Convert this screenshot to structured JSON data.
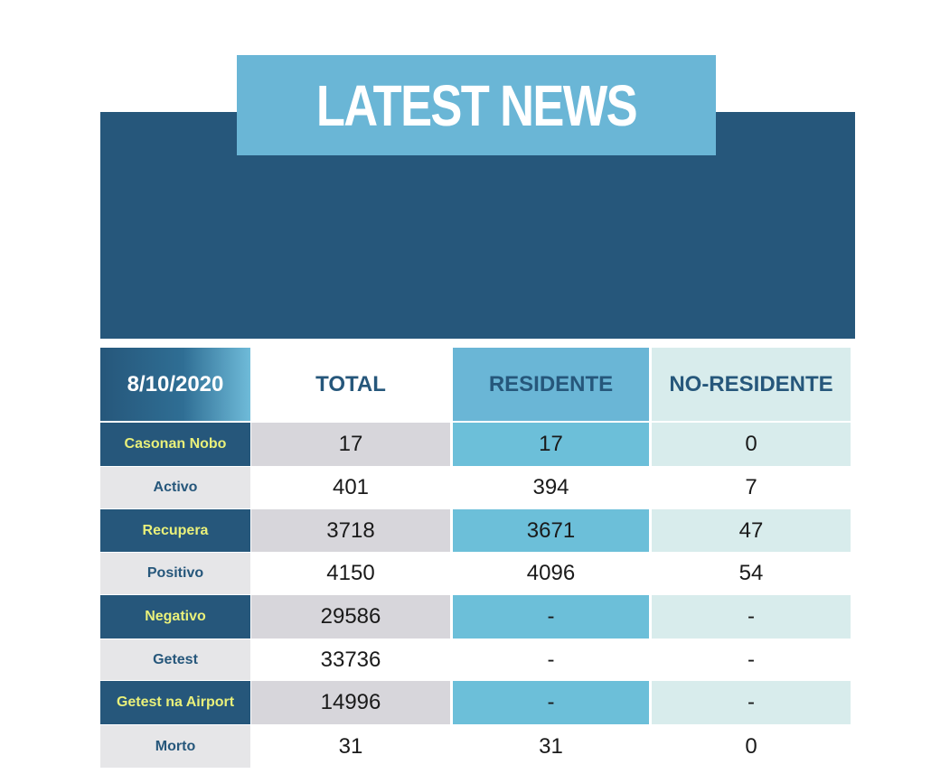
{
  "banner": {
    "title": "LATEST NEWS"
  },
  "table": {
    "date": "8/10/2020",
    "columns": [
      "TOTAL",
      "RESIDENTE",
      "NO-RESIDENTE"
    ],
    "rows": [
      {
        "label": "Casonan Nobo",
        "total": "17",
        "residente": "17",
        "no_residente": "0"
      },
      {
        "label": "Activo",
        "total": "401",
        "residente": "394",
        "no_residente": "7"
      },
      {
        "label": "Recupera",
        "total": "3718",
        "residente": "3671",
        "no_residente": "47"
      },
      {
        "label": "Positivo",
        "total": "4150",
        "residente": "4096",
        "no_residente": "54"
      },
      {
        "label": "Negativo",
        "total": "29586",
        "residente": "-",
        "no_residente": "-"
      },
      {
        "label": "Getest",
        "total": "33736",
        "residente": "-",
        "no_residente": "-"
      },
      {
        "label": "Getest na Airport",
        "total": "14996",
        "residente": "-",
        "no_residente": "-"
      },
      {
        "label": "Morto",
        "total": "31",
        "residente": "31",
        "no_residente": "0"
      }
    ]
  },
  "colors": {
    "dark_blue": "#26577b",
    "light_blue": "#6ab6d6",
    "pale_teal": "#d8ecec",
    "label_yellow": "#e9f07a",
    "gray": "#d7d6db"
  }
}
